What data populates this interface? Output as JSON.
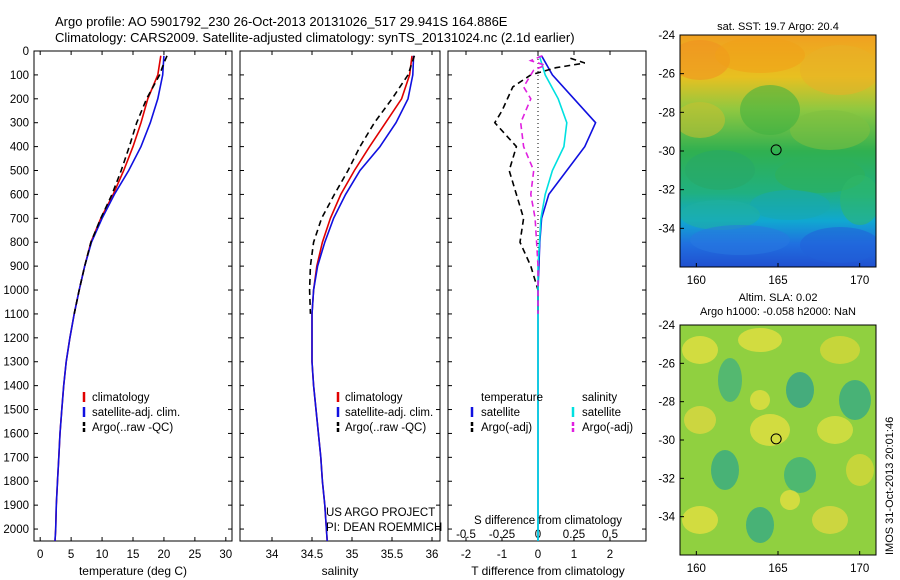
{
  "title_line1": "Argo profile: AO 5901792_230 26-Oct-2013 20131026_517 29.941S 164.886E",
  "title_line2": "Climatology: CARS2009. Satellite-adjusted climatology: synTS_20131024.nc (2.1d earlier)",
  "credit": {
    "line1": "US ARGO PROJECT",
    "line2": "PI: DEAN ROEMMICH"
  },
  "watermark": "IMOS 31-Oct-2013 20:01:46",
  "colors": {
    "climatology": "#e00000",
    "satellite": "#1010e0",
    "argo": "#000000",
    "sal_sat": "#00e0e0",
    "sal_argo": "#e020e0"
  },
  "chart_data": [
    {
      "type": "line",
      "xlabel": "temperature (deg C)",
      "xlim": [
        -1,
        31
      ],
      "ylim": [
        0,
        2050
      ],
      "xticks": [
        "0",
        "5",
        "10",
        "15",
        "20",
        "25",
        "30"
      ],
      "yticks": [
        "0",
        "100",
        "200",
        "300",
        "400",
        "500",
        "600",
        "700",
        "800",
        "900",
        "1000",
        "1100",
        "1200",
        "1300",
        "1400",
        "1500",
        "1600",
        "1700",
        "1800",
        "1900",
        "2000"
      ],
      "legend": [
        "climatology",
        "satellite-adj. clim.",
        "Argo(..raw -QC)"
      ],
      "series": [
        {
          "name": "climatology",
          "style": "solid",
          "color": "climatology",
          "points": [
            [
              19.5,
              20
            ],
            [
              19.0,
              100
            ],
            [
              17.4,
              200
            ],
            [
              16.3,
              300
            ],
            [
              15.0,
              400
            ],
            [
              13.5,
              500
            ],
            [
              11.8,
              600
            ],
            [
              9.8,
              700
            ],
            [
              8.2,
              800
            ],
            [
              7.2,
              900
            ],
            [
              6.3,
              1000
            ],
            [
              5.5,
              1100
            ],
            [
              4.8,
              1200
            ],
            [
              4.2,
              1300
            ],
            [
              3.8,
              1400
            ],
            [
              3.5,
              1500
            ],
            [
              3.2,
              1600
            ],
            [
              3.0,
              1700
            ],
            [
              2.8,
              1800
            ],
            [
              2.6,
              1900
            ],
            [
              2.5,
              2000
            ],
            [
              2.4,
              2050
            ]
          ]
        },
        {
          "name": "satellite-adj. clim.",
          "style": "solid",
          "color": "satellite",
          "points": [
            [
              20.0,
              20
            ],
            [
              19.8,
              100
            ],
            [
              19.0,
              200
            ],
            [
              17.8,
              300
            ],
            [
              16.3,
              400
            ],
            [
              14.3,
              500
            ],
            [
              12.0,
              600
            ],
            [
              10.0,
              700
            ],
            [
              8.3,
              800
            ],
            [
              7.2,
              900
            ],
            [
              6.3,
              1000
            ],
            [
              5.5,
              1100
            ],
            [
              4.8,
              1200
            ],
            [
              4.2,
              1300
            ],
            [
              3.8,
              1400
            ],
            [
              3.5,
              1500
            ],
            [
              3.2,
              1600
            ],
            [
              3.0,
              1700
            ],
            [
              2.8,
              1800
            ],
            [
              2.6,
              1900
            ],
            [
              2.5,
              2000
            ],
            [
              2.4,
              2050
            ]
          ]
        },
        {
          "name": "Argo(..raw -QC)",
          "style": "dashed",
          "color": "argo",
          "points": [
            [
              20.5,
              20
            ],
            [
              20.0,
              50
            ],
            [
              19.3,
              100
            ],
            [
              17.2,
              200
            ],
            [
              15.6,
              300
            ],
            [
              14.4,
              400
            ],
            [
              13.1,
              500
            ],
            [
              11.6,
              600
            ],
            [
              9.8,
              700
            ],
            [
              8.2,
              800
            ],
            [
              7.2,
              900
            ],
            [
              6.3,
              1000
            ],
            [
              5.5,
              1100
            ]
          ]
        }
      ]
    },
    {
      "type": "line",
      "xlabel": "salinity",
      "xlim": [
        33.6,
        36.1
      ],
      "ylim": [
        0,
        2050
      ],
      "xticks": [
        "34",
        "34.5",
        "35",
        "35.5",
        "36"
      ],
      "legend": [
        "climatology",
        "satellite-adj. clim.",
        "Argo(..raw -QC)"
      ],
      "series": [
        {
          "name": "climatology",
          "style": "solid",
          "color": "climatology",
          "points": [
            [
              35.75,
              20
            ],
            [
              35.72,
              100
            ],
            [
              35.62,
              200
            ],
            [
              35.42,
              300
            ],
            [
              35.22,
              400
            ],
            [
              35.03,
              500
            ],
            [
              34.86,
              600
            ],
            [
              34.73,
              700
            ],
            [
              34.63,
              800
            ],
            [
              34.56,
              900
            ],
            [
              34.52,
              1000
            ],
            [
              34.5,
              1100
            ],
            [
              34.5,
              1200
            ],
            [
              34.5,
              1300
            ],
            [
              34.52,
              1400
            ],
            [
              34.55,
              1500
            ],
            [
              34.58,
              1600
            ],
            [
              34.61,
              1700
            ],
            [
              34.63,
              1800
            ],
            [
              34.66,
              1900
            ],
            [
              34.68,
              2000
            ],
            [
              34.69,
              2050
            ]
          ]
        },
        {
          "name": "satellite-adj. clim.",
          "style": "solid",
          "color": "satellite",
          "points": [
            [
              35.77,
              20
            ],
            [
              35.76,
              100
            ],
            [
              35.7,
              200
            ],
            [
              35.55,
              300
            ],
            [
              35.35,
              400
            ],
            [
              35.1,
              500
            ],
            [
              34.92,
              600
            ],
            [
              34.77,
              700
            ],
            [
              34.66,
              800
            ],
            [
              34.57,
              900
            ],
            [
              34.52,
              1000
            ],
            [
              34.5,
              1100
            ],
            [
              34.5,
              1200
            ],
            [
              34.5,
              1300
            ],
            [
              34.52,
              1400
            ],
            [
              34.55,
              1500
            ],
            [
              34.58,
              1600
            ],
            [
              34.61,
              1700
            ],
            [
              34.63,
              1800
            ],
            [
              34.66,
              1900
            ],
            [
              34.68,
              2000
            ],
            [
              34.69,
              2050
            ]
          ]
        },
        {
          "name": "Argo(..raw -QC)",
          "style": "dashed",
          "color": "argo",
          "points": [
            [
              35.78,
              20
            ],
            [
              35.7,
              100
            ],
            [
              35.5,
              200
            ],
            [
              35.28,
              300
            ],
            [
              35.1,
              400
            ],
            [
              34.95,
              500
            ],
            [
              34.78,
              600
            ],
            [
              34.62,
              700
            ],
            [
              34.52,
              800
            ],
            [
              34.48,
              900
            ],
            [
              34.47,
              1000
            ],
            [
              34.48,
              1100
            ]
          ]
        }
      ]
    },
    {
      "type": "line",
      "xlabel": "T difference from climatology",
      "xlabel_top": "S difference from climatology",
      "xlim": [
        -2.5,
        3.0
      ],
      "ylim": [
        0,
        2050
      ],
      "xticks": [
        "-2",
        "-1",
        "0",
        "1",
        "2"
      ],
      "xticks_top": [
        "-0.5",
        "-0.25",
        "0",
        "0.25",
        "0.5"
      ],
      "legend_left_title": "temperature",
      "legend_right_title": "salinity",
      "legend": [
        "satellite",
        "Argo(-adj)",
        "satellite",
        "Argo(-adj)"
      ],
      "series": [
        {
          "name": "satellite",
          "group": "temperature",
          "style": "solid",
          "color": "satellite",
          "points": [
            [
              0.1,
              20
            ],
            [
              0.4,
              100
            ],
            [
              1.0,
              200
            ],
            [
              1.6,
              300
            ],
            [
              1.3,
              400
            ],
            [
              0.8,
              500
            ],
            [
              0.3,
              600
            ],
            [
              0.1,
              700
            ],
            [
              0.05,
              800
            ],
            [
              0,
              1000
            ],
            [
              0,
              2050
            ]
          ]
        },
        {
          "name": "Argo(-adj)",
          "group": "temperature",
          "style": "dashed",
          "color": "argo",
          "points": [
            [
              0.9,
              30
            ],
            [
              1.3,
              50
            ],
            [
              0.5,
              70
            ],
            [
              -0.2,
              100
            ],
            [
              -0.7,
              150
            ],
            [
              -1.0,
              250
            ],
            [
              -1.2,
              300
            ],
            [
              -0.6,
              400
            ],
            [
              -0.8,
              500
            ],
            [
              -0.6,
              600
            ],
            [
              -0.4,
              700
            ],
            [
              -0.5,
              800
            ],
            [
              -0.2,
              900
            ],
            [
              0,
              1000
            ],
            [
              0,
              1100
            ]
          ]
        },
        {
          "name": "satellite",
          "group": "salinity",
          "style": "solid",
          "color": "sal_sat",
          "points": [
            [
              0.01,
              20
            ],
            [
              0.05,
              100
            ],
            [
              0.14,
              200
            ],
            [
              0.2,
              300
            ],
            [
              0.18,
              400
            ],
            [
              0.1,
              500
            ],
            [
              0.05,
              600
            ],
            [
              0.02,
              700
            ],
            [
              0,
              900
            ],
            [
              0,
              2050
            ]
          ]
        },
        {
          "name": "Argo(-adj)",
          "group": "salinity",
          "style": "dashed",
          "color": "sal_argo",
          "points": [
            [
              0.03,
              20
            ],
            [
              -0.05,
              40
            ],
            [
              0.05,
              60
            ],
            [
              -0.03,
              80
            ],
            [
              -0.1,
              150
            ],
            [
              -0.05,
              200
            ],
            [
              -0.12,
              300
            ],
            [
              -0.1,
              400
            ],
            [
              -0.03,
              500
            ],
            [
              -0.05,
              600
            ],
            [
              -0.02,
              700
            ],
            [
              -0.01,
              800
            ],
            [
              0,
              900
            ],
            [
              0,
              1100
            ]
          ]
        }
      ]
    },
    {
      "type": "heatmap",
      "title": "sat. SST: 19.7 Argo: 20.4",
      "xlim": [
        159,
        171
      ],
      "ylim": [
        -36,
        -24
      ],
      "xticks": [
        "160",
        "165",
        "170"
      ],
      "yticks": [
        "-24",
        "-26",
        "-28",
        "-30",
        "-32",
        "-34"
      ],
      "marker": [
        164.886,
        -29.941
      ]
    },
    {
      "type": "heatmap",
      "title": "Altim. SLA: 0.02",
      "subtitle": "Argo h1000: -0.058 h2000: NaN",
      "xlim": [
        159,
        171
      ],
      "ylim": [
        -36,
        -24
      ],
      "xticks": [
        "160",
        "165",
        "170"
      ],
      "yticks": [
        "-24",
        "-26",
        "-28",
        "-30",
        "-32",
        "-34"
      ],
      "marker": [
        164.886,
        -29.941
      ]
    }
  ]
}
